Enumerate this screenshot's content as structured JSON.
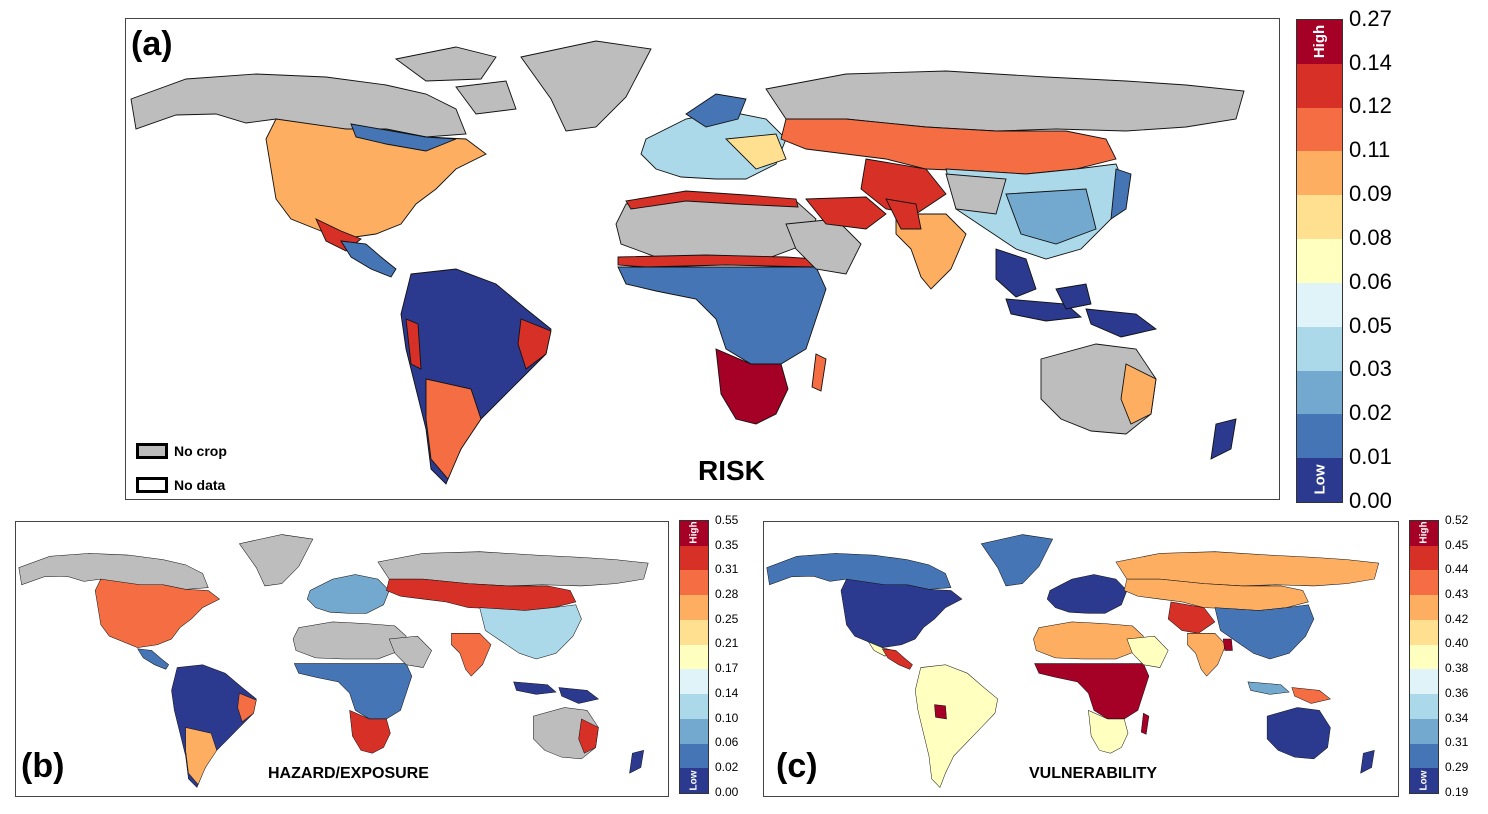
{
  "palette": [
    "#2b3a8f",
    "#4575b4",
    "#74a9cf",
    "#abd9e9",
    "#e0f3f8",
    "#ffffbf",
    "#fee090",
    "#fdae61",
    "#f46d43",
    "#d73027",
    "#a50026"
  ],
  "no_crop_color": "#bdbdbd",
  "panels": {
    "a": {
      "label": "(a)",
      "title": "RISK",
      "legend": {
        "no_crop": "No crop",
        "no_data": "No data"
      },
      "colorbar": {
        "high": "High",
        "low": "Low",
        "ticks": [
          "0.27",
          "0.14",
          "0.12",
          "0.11",
          "0.09",
          "0.08",
          "0.06",
          "0.05",
          "0.03",
          "0.02",
          "0.01",
          "0.00"
        ]
      }
    },
    "b": {
      "label": "(b)",
      "title": "HAZARD/EXPOSURE",
      "colorbar": {
        "high": "High",
        "low": "Low",
        "ticks": [
          "0.55",
          "0.35",
          "0.31",
          "0.28",
          "0.25",
          "0.21",
          "0.17",
          "0.14",
          "0.10",
          "0.06",
          "0.02",
          "0.00"
        ]
      }
    },
    "c": {
      "label": "(c)",
      "title": "VULNERABILITY",
      "colorbar": {
        "high": "High",
        "low": "Low",
        "ticks": [
          "0.52",
          "0.45",
          "0.44",
          "0.43",
          "0.42",
          "0.40",
          "0.38",
          "0.36",
          "0.34",
          "0.31",
          "0.29",
          "0.19"
        ]
      }
    }
  }
}
